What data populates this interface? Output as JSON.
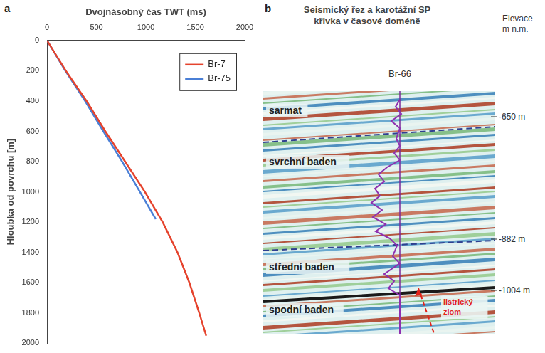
{
  "chart_data": {
    "type": "line",
    "x_label": "Dvojnásobný čas TWT (ms)",
    "y_label": "Hloubka od povrchu [m]",
    "series": [
      {
        "name": "Br-7",
        "color": "#e5432d",
        "x": [
          0,
          190,
          400,
          590,
          790,
          990,
          1170,
          1320,
          1440,
          1540,
          1610
        ],
        "values": [
          0,
          200,
          400,
          600,
          800,
          1000,
          1200,
          1400,
          1600,
          1800,
          1950
        ]
      },
      {
        "name": "Br-75",
        "color": "#4a7fd6",
        "x": [
          0,
          185,
          385,
          570,
          760,
          940,
          1100
        ],
        "values": [
          0,
          200,
          400,
          600,
          800,
          1000,
          1180
        ]
      }
    ],
    "xlim": [
      0,
      2000
    ],
    "xticks": [
      0,
      500,
      1000,
      1500,
      2000
    ],
    "ylim": [
      2000,
      0
    ],
    "yticks": [
      0,
      200,
      400,
      600,
      800,
      1000,
      1200,
      1400,
      1600,
      1800,
      2000
    ],
    "grid": false,
    "legend": "upper right"
  },
  "panels": [
    "a",
    "b"
  ],
  "section": {
    "title": "Seismický řez a karotážní SP křivka v časové doméně",
    "well": "Br-66",
    "elevation_header": "Elevace m n.m.",
    "units": [
      "sarmat",
      "svrchní baden",
      "střední baden",
      "spodní baden"
    ],
    "elevations": [
      "-650 m",
      "-882 m",
      "-1004 m"
    ],
    "fault_label": "listrický zlom"
  }
}
